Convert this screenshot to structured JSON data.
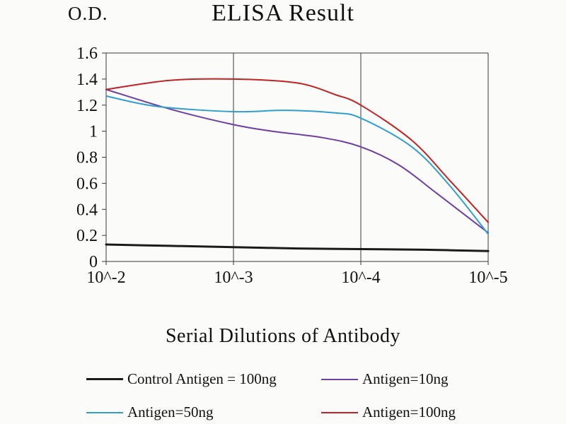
{
  "chart": {
    "od_label": "O.D."
  },
  "chart_data": {
    "type": "line",
    "title": "ELISA Result",
    "ylabel": "O.D.",
    "xlabel": "Serial Dilutions of Antibody",
    "categories": [
      "10^-2",
      "10^-3",
      "10^-4",
      "10^-5"
    ],
    "ylim": [
      0,
      1.6
    ],
    "yticks": [
      {
        "value": 0,
        "label": "0"
      },
      {
        "value": 0.2,
        "label": "0.2"
      },
      {
        "value": 0.4,
        "label": "0.4"
      },
      {
        "value": 0.6,
        "label": "0.6"
      },
      {
        "value": 0.8,
        "label": "0.8"
      },
      {
        "value": 1,
        "label": "1"
      },
      {
        "value": 1.2,
        "label": "1.2"
      },
      {
        "value": 1.4,
        "label": "1.4"
      },
      {
        "value": 1.6,
        "label": "1.6"
      }
    ],
    "grid": "vertical-only",
    "legend_position": "bottom",
    "axis_color": "#3a3a3a",
    "series": [
      {
        "name": "Control Antigen = 100ng",
        "color": "#1a1a1a",
        "stroke_width": 3,
        "x": [
          0,
          0.5,
          1,
          1.5,
          2,
          2.5,
          3
        ],
        "y": [
          0.13,
          0.12,
          0.11,
          0.1,
          0.095,
          0.09,
          0.08
        ]
      },
      {
        "name": "Antigen=10ng",
        "color": "#6e3fa3",
        "stroke_width": 2,
        "x": [
          0,
          0.5,
          1,
          1.3,
          1.7,
          2,
          2.3,
          2.6,
          3
        ],
        "y": [
          1.32,
          1.17,
          1.05,
          1.0,
          0.95,
          0.88,
          0.74,
          0.52,
          0.22
        ]
      },
      {
        "name": "Antigen=50ng",
        "color": "#2f9fce",
        "stroke_width": 2,
        "x": [
          0,
          0.4,
          1,
          1.4,
          1.8,
          2,
          2.4,
          2.7,
          3
        ],
        "y": [
          1.27,
          1.19,
          1.15,
          1.16,
          1.14,
          1.1,
          0.88,
          0.58,
          0.21
        ]
      },
      {
        "name": "Antigen=100ng",
        "color": "#c32222",
        "stroke_width": 2,
        "x": [
          0,
          0.5,
          1,
          1.5,
          1.8,
          2,
          2.4,
          2.7,
          3
        ],
        "y": [
          1.32,
          1.39,
          1.4,
          1.37,
          1.28,
          1.2,
          0.93,
          0.62,
          0.3
        ]
      }
    ]
  }
}
